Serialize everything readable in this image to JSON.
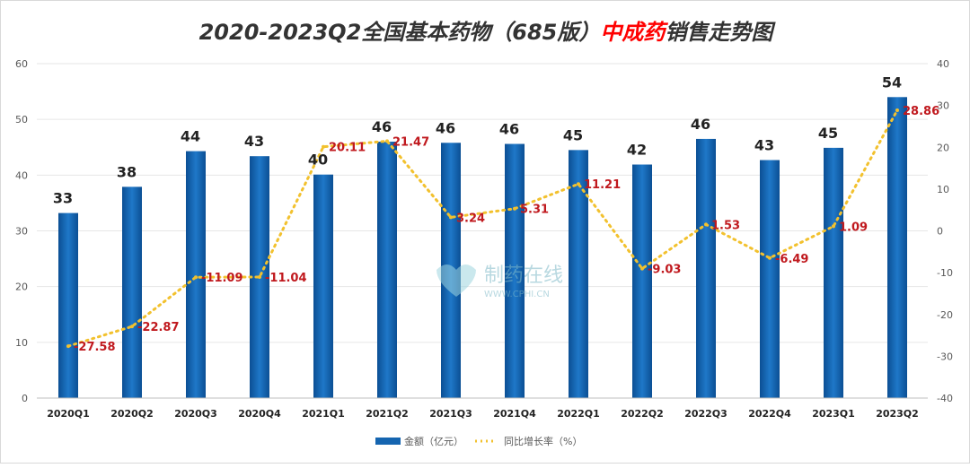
{
  "chart_data": {
    "type": "bar+line",
    "title_part1": "2020-2023Q2全国基本药物（685版）",
    "title_highlight": "中成药",
    "title_part2": "销售走势图",
    "categories": [
      "2020Q1",
      "2020Q2",
      "2020Q3",
      "2020Q4",
      "2021Q1",
      "2021Q2",
      "2021Q3",
      "2021Q4",
      "2022Q1",
      "2022Q2",
      "2022Q3",
      "2022Q4",
      "2023Q1",
      "2023Q2"
    ],
    "series": [
      {
        "name": "金额（亿元）",
        "type": "bar",
        "axis": "left",
        "values": [
          33.2,
          37.9,
          44.3,
          43.4,
          40.1,
          46.0,
          45.8,
          45.6,
          44.5,
          41.9,
          46.5,
          42.7,
          44.9,
          54.0
        ],
        "labels": [
          "33",
          "38",
          "44",
          "43",
          "40",
          "46",
          "46",
          "46",
          "45",
          "42",
          "46",
          "43",
          "45",
          "54"
        ]
      },
      {
        "name": "同比增长率（%）",
        "type": "line",
        "axis": "right",
        "values": [
          -27.58,
          -22.87,
          -11.09,
          -11.04,
          20.11,
          21.47,
          3.24,
          5.31,
          11.21,
          -9.03,
          1.53,
          -6.49,
          1.09,
          28.86
        ],
        "labels": [
          "-27.58",
          "-22.87",
          "-11.09",
          "-11.04",
          "20.11",
          "21.47",
          "3.24",
          "5.31",
          "11.21",
          "-9.03",
          "1.53",
          "-6.49",
          "1.09",
          "28.86"
        ]
      }
    ],
    "yleft": {
      "range": [
        0,
        60
      ],
      "ticks": [
        "0",
        "10",
        "20",
        "30",
        "40",
        "50",
        "60"
      ]
    },
    "yright": {
      "range": [
        -40,
        40
      ],
      "ticks": [
        "-40",
        "-30",
        "-20",
        "-10",
        "0",
        "10",
        "20",
        "30",
        "40"
      ]
    },
    "grid": true,
    "legend": "bottom",
    "colors": {
      "bar": "#1565b0",
      "line": "#f2c12e",
      "line_label": "#c0191e",
      "title": "#333333",
      "highlight": "#ff0000"
    },
    "watermark": {
      "text": "制药在线",
      "sub": "WWW.CPHI.CN"
    }
  }
}
